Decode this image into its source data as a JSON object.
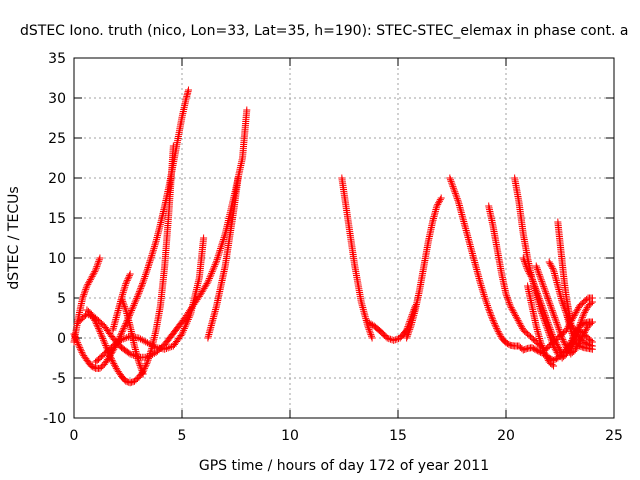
{
  "chart_data": {
    "type": "scatter",
    "title": "dSTEC Iono. truth (nico, Lon=33, Lat=35, h=190): STEC-STEC_elemax in phase cont. a",
    "xlabel": "GPS time / hours of day 172 of year 2011",
    "ylabel": "dSTEC  / TECUs",
    "xlim": [
      0,
      25
    ],
    "ylim": [
      -10,
      35
    ],
    "x_ticks": [
      0,
      5,
      10,
      15,
      20,
      25
    ],
    "y_ticks": [
      -10,
      -5,
      0,
      5,
      10,
      15,
      20,
      25,
      30,
      35
    ],
    "grid": true,
    "marker": "+",
    "color": "#ff0000",
    "series": [
      {
        "x": [
          0.0,
          0.2,
          0.4,
          0.6,
          0.8,
          1.0,
          1.2,
          1.4,
          1.6,
          1.8,
          2.0,
          2.2,
          2.4,
          2.6,
          2.8,
          3.0,
          3.2,
          3.4,
          3.6,
          3.8,
          4.0,
          4.2,
          4.4,
          4.6,
          4.8,
          5.0,
          5.2,
          5.3
        ],
        "y": [
          0.5,
          -0.8,
          -2.0,
          -2.8,
          -3.5,
          -3.8,
          -3.8,
          -3.3,
          -2.5,
          -1.6,
          -0.6,
          0.6,
          1.8,
          3.0,
          4.3,
          5.6,
          7.0,
          8.6,
          10.3,
          12.1,
          14.2,
          16.5,
          19.0,
          21.8,
          24.7,
          27.6,
          30.0,
          31.0
        ]
      },
      {
        "x": [
          0.6,
          0.8,
          1.0,
          1.2,
          1.4,
          1.6,
          1.8,
          2.0,
          2.2,
          2.4,
          2.6,
          2.8,
          3.0,
          3.2,
          3.4,
          3.6,
          3.8,
          4.0,
          4.2,
          4.4,
          4.6
        ],
        "y": [
          3.5,
          3.0,
          2.0,
          0.8,
          -0.5,
          -1.8,
          -3.0,
          -4.0,
          -4.8,
          -5.4,
          -5.6,
          -5.4,
          -4.9,
          -4.2,
          -3.0,
          -1.3,
          1.0,
          4.0,
          9.0,
          16.0,
          24.0
        ]
      },
      {
        "x": [
          0.2,
          0.6,
          1.0,
          1.4,
          1.8,
          2.2,
          2.6,
          3.0,
          3.4,
          3.8,
          4.2,
          4.6,
          5.0,
          5.4,
          5.8,
          6.2,
          6.6,
          7.0,
          7.4,
          7.8,
          8.0
        ],
        "y": [
          2.0,
          3.0,
          2.5,
          1.5,
          0.0,
          -1.2,
          -2.0,
          -2.4,
          -2.4,
          -1.8,
          -0.8,
          0.6,
          2.0,
          3.6,
          5.2,
          7.0,
          9.6,
          13.0,
          17.6,
          22.5,
          28.5
        ]
      },
      {
        "x": [
          1.0,
          1.4,
          1.8,
          2.2,
          2.6,
          3.0,
          3.4,
          3.8,
          4.2,
          4.6,
          5.0,
          5.4,
          5.8,
          6.0
        ],
        "y": [
          -3.0,
          -2.0,
          -1.0,
          -0.2,
          0.2,
          0.0,
          -0.6,
          -1.2,
          -1.4,
          -1.0,
          0.5,
          3.0,
          7.5,
          12.5
        ]
      },
      {
        "x": [
          0.0,
          0.2,
          0.4,
          0.6,
          0.8,
          1.0,
          1.2
        ],
        "y": [
          -0.5,
          2.5,
          5.0,
          6.5,
          7.5,
          8.5,
          10.0
        ]
      },
      {
        "x": [
          1.8,
          2.0,
          2.2,
          2.4,
          2.6
        ],
        "y": [
          1.0,
          3.0,
          5.0,
          6.8,
          8.0
        ]
      },
      {
        "x": [
          2.2,
          2.4,
          2.6,
          2.8,
          3.0,
          3.2
        ],
        "y": [
          5.0,
          3.5,
          1.5,
          -1.0,
          -3.0,
          -4.5
        ]
      },
      {
        "x": [
          6.2,
          6.4,
          6.6,
          6.8,
          7.0,
          7.2,
          7.4,
          7.6
        ],
        "y": [
          0.0,
          2.0,
          4.0,
          6.5,
          9.0,
          12.5,
          16.0,
          20.0
        ]
      },
      {
        "x": [
          12.4,
          12.7,
          13.0,
          13.3,
          13.6,
          13.8
        ],
        "y": [
          20.0,
          14.5,
          9.0,
          4.5,
          1.5,
          0.0
        ]
      },
      {
        "x": [
          13.6,
          13.9,
          14.2,
          14.5,
          14.8,
          15.1,
          15.4,
          15.6,
          15.8
        ],
        "y": [
          2.0,
          1.5,
          0.8,
          0.0,
          -0.3,
          0.0,
          1.0,
          2.5,
          4.0
        ]
      },
      {
        "x": [
          15.4,
          15.6,
          15.8,
          16.0,
          16.2,
          16.4,
          16.6,
          16.8,
          17.0
        ],
        "y": [
          0.0,
          1.5,
          3.5,
          6.0,
          9.0,
          12.0,
          14.5,
          16.5,
          17.5
        ]
      },
      {
        "x": [
          17.4,
          17.6,
          17.8,
          18.0,
          18.2,
          18.4,
          18.6,
          18.8,
          19.0,
          19.2,
          19.4,
          19.6,
          19.8,
          20.0,
          20.2,
          20.4,
          20.6,
          20.8,
          21.0,
          21.2,
          21.4,
          21.6,
          21.8,
          22.0,
          22.2,
          22.4,
          22.6,
          22.8
        ],
        "y": [
          20.0,
          18.5,
          17.0,
          15.0,
          13.0,
          11.0,
          9.0,
          7.0,
          5.2,
          3.6,
          2.2,
          1.0,
          0.0,
          -0.6,
          -0.9,
          -1.0,
          -1.0,
          -1.5,
          -1.3,
          -1.2,
          -1.5,
          -1.8,
          -2.0,
          -2.5,
          -2.8,
          -2.5,
          -2.0,
          -1.5
        ]
      },
      {
        "x": [
          19.2,
          19.4,
          19.6,
          19.8,
          20.0,
          20.2,
          20.4,
          20.6,
          20.8,
          21.0,
          21.2,
          21.4,
          21.6,
          21.8,
          22.0,
          22.2,
          22.4,
          22.6,
          22.8,
          23.0,
          23.2,
          23.4,
          23.6,
          23.8,
          24.0
        ],
        "y": [
          16.5,
          14.0,
          11.0,
          8.0,
          5.5,
          4.0,
          3.0,
          2.0,
          1.0,
          0.5,
          0.0,
          -0.5,
          -1.0,
          -1.5,
          -1.0,
          -0.5,
          0.0,
          0.5,
          1.0,
          2.0,
          3.0,
          4.0,
          4.5,
          5.0,
          5.0
        ]
      },
      {
        "x": [
          20.4,
          20.6,
          20.8,
          21.0,
          21.2,
          21.4,
          21.6,
          21.8,
          22.0,
          22.2,
          22.4,
          22.6,
          22.8,
          23.0,
          23.2,
          23.4,
          23.6,
          23.8,
          24.0
        ],
        "y": [
          20.0,
          17.0,
          13.0,
          10.0,
          7.5,
          5.5,
          3.5,
          2.0,
          0.5,
          -1.0,
          -2.0,
          -2.5,
          -2.0,
          -1.0,
          0.0,
          1.0,
          0.5,
          0.0,
          -0.5
        ]
      },
      {
        "x": [
          20.8,
          21.0,
          21.2,
          21.4,
          21.6,
          21.8,
          22.0,
          22.2,
          22.4,
          22.6,
          22.8,
          23.0,
          23.2,
          23.4,
          23.6,
          23.8,
          24.0
        ],
        "y": [
          10.0,
          8.5,
          7.5,
          6.0,
          4.5,
          3.0,
          1.5,
          0.0,
          -1.0,
          -2.0,
          -1.5,
          -0.5,
          0.5,
          1.5,
          1.8,
          2.0,
          2.0
        ]
      },
      {
        "x": [
          21.4,
          21.6,
          21.8,
          22.0,
          22.2,
          22.4,
          22.6,
          22.8,
          23.0,
          23.2,
          23.4,
          23.6,
          23.8,
          24.0
        ],
        "y": [
          9.0,
          7.5,
          6.0,
          4.5,
          3.0,
          1.5,
          0.0,
          -1.2,
          -2.0,
          -1.5,
          -0.5,
          0.5,
          1.5,
          2.0
        ]
      },
      {
        "x": [
          22.0,
          22.2,
          22.4,
          22.6,
          22.8,
          23.0,
          23.2,
          23.4,
          23.6,
          23.8,
          24.0
        ],
        "y": [
          9.5,
          8.5,
          6.5,
          4.5,
          3.0,
          1.8,
          0.8,
          0.0,
          -0.5,
          -0.8,
          -1.0
        ]
      },
      {
        "x": [
          22.4,
          22.5,
          22.6,
          22.7,
          22.8,
          22.9,
          23.0
        ],
        "y": [
          14.5,
          12.0,
          9.5,
          7.0,
          5.0,
          3.5,
          2.0
        ]
      },
      {
        "x": [
          22.8,
          23.0,
          23.2,
          23.4,
          23.6,
          23.8,
          24.0
        ],
        "y": [
          3.0,
          1.0,
          -0.5,
          -1.0,
          -1.2,
          -1.3,
          -1.4
        ]
      },
      {
        "x": [
          21.0,
          21.2,
          21.4,
          21.6,
          21.8,
          22.0,
          22.2
        ],
        "y": [
          6.5,
          4.0,
          1.5,
          -0.5,
          -2.0,
          -3.0,
          -3.5
        ]
      },
      {
        "x": [
          23.0,
          23.2,
          23.4,
          23.6,
          23.8,
          24.0
        ],
        "y": [
          -1.5,
          0.0,
          1.5,
          3.0,
          4.0,
          4.5
        ]
      }
    ]
  }
}
